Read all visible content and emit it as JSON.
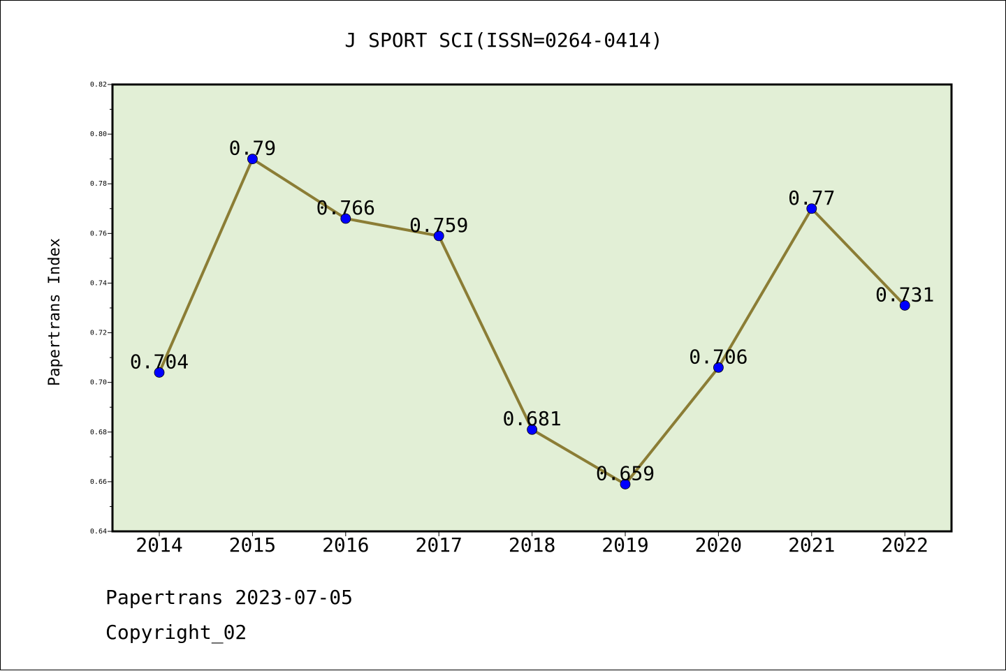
{
  "chart_data": {
    "type": "line",
    "title": "J SPORT SCI(ISSN=0264-0414)",
    "xlabel": "",
    "ylabel": "Papertrans Index",
    "categories": [
      "2014",
      "2015",
      "2016",
      "2017",
      "2018",
      "2019",
      "2020",
      "2021",
      "2022"
    ],
    "values": [
      0.704,
      0.79,
      0.766,
      0.759,
      0.681,
      0.659,
      0.706,
      0.77,
      0.731
    ],
    "value_labels": [
      "0.704",
      "0.79",
      "0.766",
      "0.759",
      "0.681",
      "0.659",
      "0.706",
      "0.77",
      "0.731"
    ],
    "ylim": [
      0.64,
      0.82
    ],
    "yticks": [
      "0.64",
      "0.66",
      "0.68",
      "0.70",
      "0.72",
      "0.74",
      "0.76",
      "0.78",
      "0.80",
      "0.82"
    ],
    "grid": false,
    "legend": "none"
  },
  "footer": {
    "line1": "Papertrans 2023-07-05",
    "line2": "Copyright_02"
  },
  "colors": {
    "plot_background": "#e2efd6",
    "line": "#8b7d35",
    "marker": "#0000ff"
  }
}
